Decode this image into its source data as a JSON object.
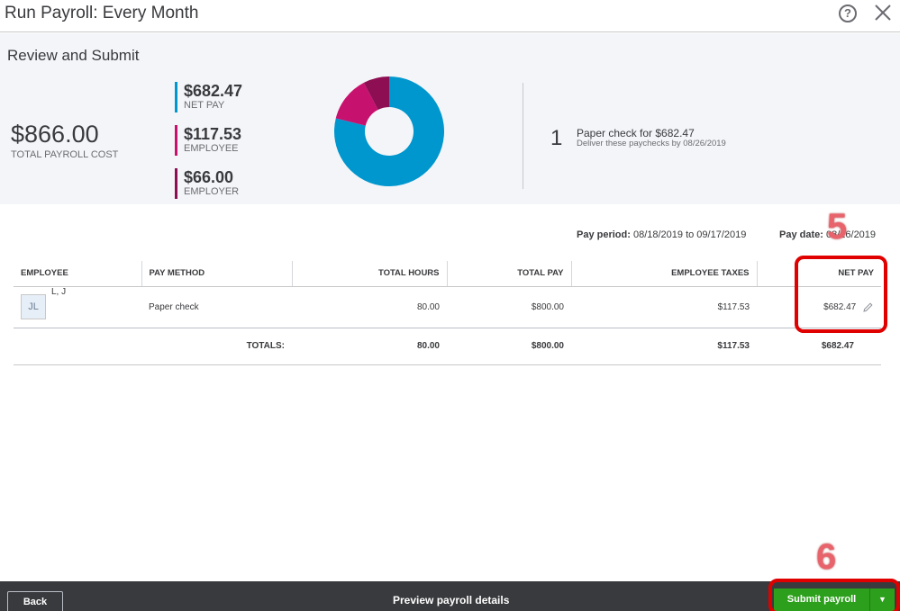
{
  "window": {
    "title": "Run Payroll: Every Month"
  },
  "summary": {
    "section_title": "Review and Submit",
    "total_cost": "$866.00",
    "total_cost_label": "TOTAL PAYROLL COST",
    "legend": [
      {
        "amount": "$682.47",
        "label": "NET PAY",
        "color": "#0097ce",
        "value": 682.47
      },
      {
        "amount": "$117.53",
        "label": "EMPLOYEE",
        "color": "#c7116e",
        "value": 117.53
      },
      {
        "amount": "$66.00",
        "label": "EMPLOYER",
        "color": "#8d0e52",
        "value": 66.0
      }
    ],
    "check_count": "1",
    "check_text": "Paper check for $682.47",
    "check_sub": "Deliver these paychecks by 08/26/2019"
  },
  "pay_info": {
    "period_label": "Pay period:",
    "period_value": "08/18/2019 to 09/17/2019",
    "date_label": "Pay date:",
    "date_value": "08/26/2019"
  },
  "table": {
    "headers": [
      "EMPLOYEE",
      "PAY METHOD",
      "TOTAL HOURS",
      "TOTAL PAY",
      "EMPLOYEE TAXES",
      "NET PAY"
    ],
    "rows": [
      {
        "initials": "JL",
        "name": "L, J",
        "pay_method": "Paper check",
        "hours": "80.00",
        "total_pay": "$800.00",
        "taxes": "$117.53",
        "net_pay": "$682.47"
      }
    ],
    "totals": {
      "label": "TOTALS:",
      "hours": "80.00",
      "total_pay": "$800.00",
      "taxes": "$117.53",
      "net_pay": "$682.47"
    }
  },
  "annotations": {
    "step5": "5",
    "step6": "6"
  },
  "footer": {
    "back_label": "Back",
    "preview_label": "Preview payroll details",
    "submit_label": "Submit payroll",
    "dropdown_glyph": "▼"
  }
}
